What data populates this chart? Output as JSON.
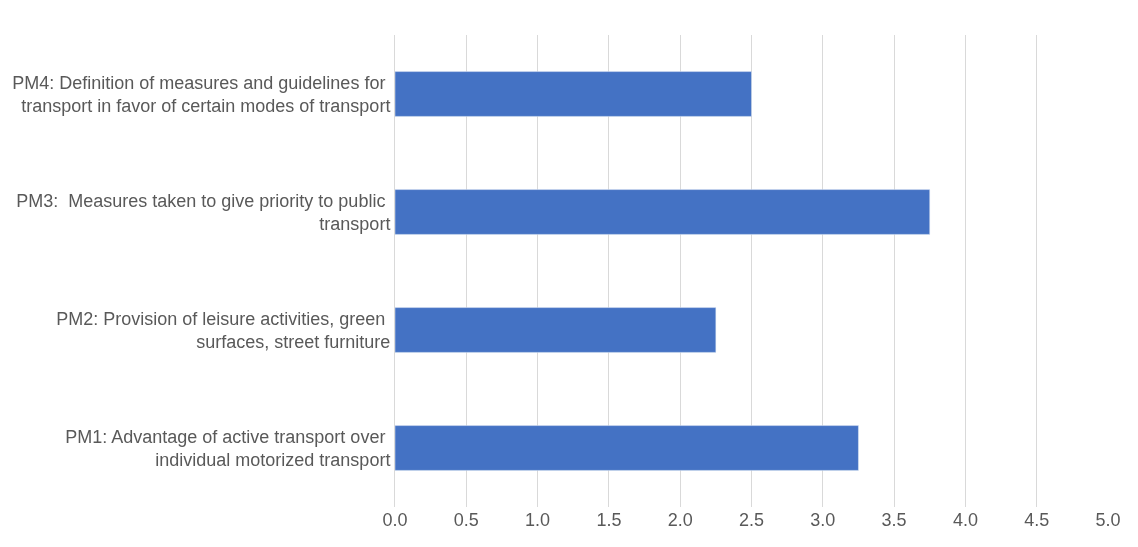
{
  "chart_data": {
    "type": "bar",
    "orientation": "horizontal",
    "categories": [
      "PM4: Definition of measures and guidelines for transport in favor of certain modes of transport",
      "PM3:  Measures taken to give priority to public transport",
      "PM2: Provision of leisure activities, green surfaces, street furniture",
      "PM1: Advantage of active transport over individual motorized transport"
    ],
    "values": [
      2.5,
      3.75,
      2.25,
      3.25
    ],
    "color": "#4472c4",
    "xlim": [
      0,
      5
    ],
    "xticks": [
      {
        "value": 0,
        "label": "0.0"
      },
      {
        "value": 0.5,
        "label": "0.5"
      },
      {
        "value": 1,
        "label": "1.0"
      },
      {
        "value": 1.5,
        "label": "1.5"
      },
      {
        "value": 2,
        "label": "2.0"
      },
      {
        "value": 2.5,
        "label": "2.5"
      },
      {
        "value": 3,
        "label": "3.0"
      },
      {
        "value": 3.5,
        "label": "3.5"
      },
      {
        "value": 4,
        "label": "4.0"
      },
      {
        "value": 4.5,
        "label": "4.5"
      },
      {
        "value": 5,
        "label": "5.0"
      }
    ],
    "grid": "x"
  }
}
